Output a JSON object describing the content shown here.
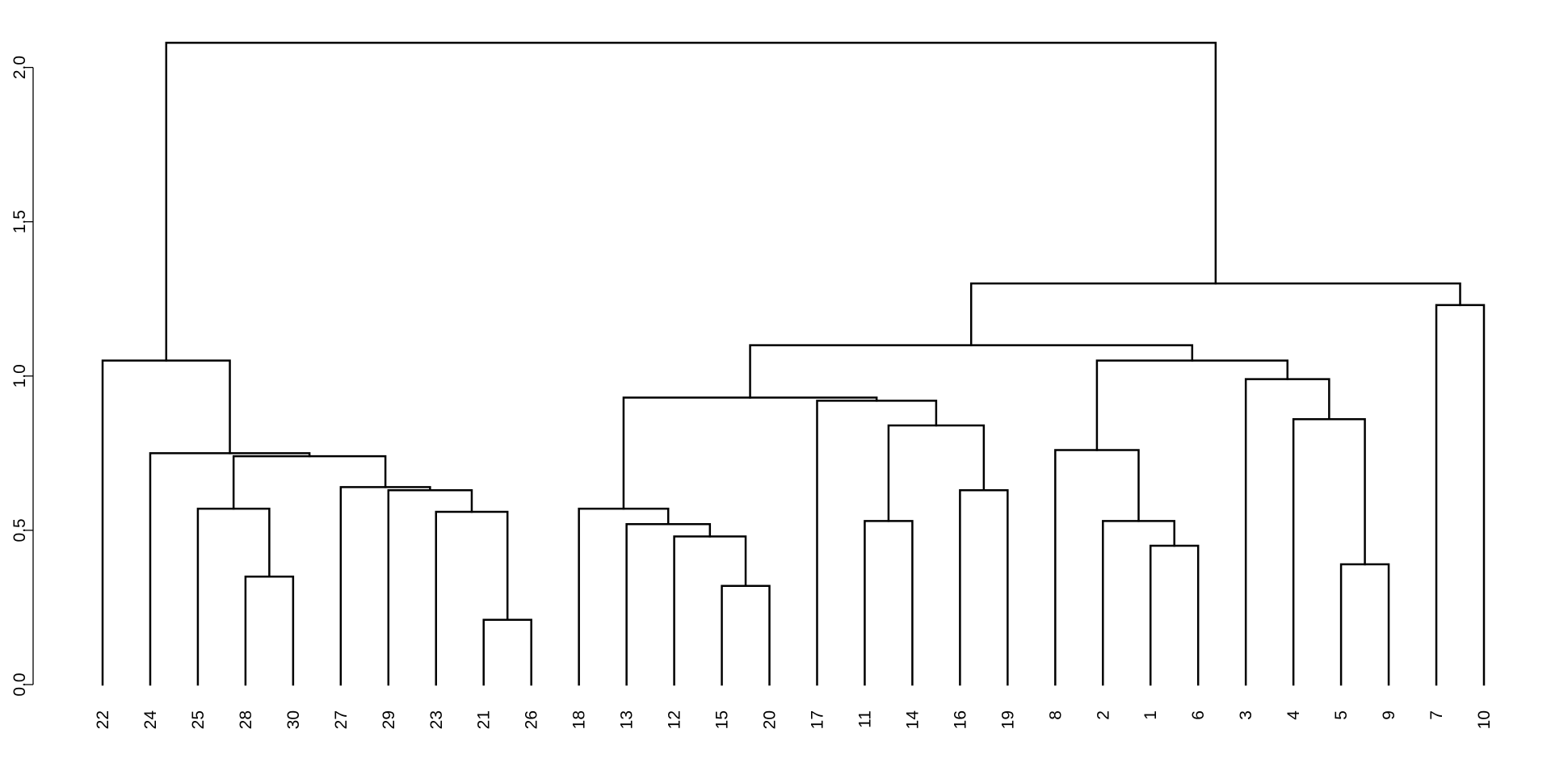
{
  "chart_data": {
    "type": "dendrogram",
    "title": "",
    "xlabel": "",
    "ylabel": "",
    "ylim": [
      0,
      2.1
    ],
    "yticks": [
      0.0,
      0.5,
      1.0,
      1.5,
      2.0
    ],
    "ytick_labels": [
      "0.0",
      "0.5",
      "1.0",
      "1.5",
      "2.0"
    ],
    "leaf_order": [
      "22",
      "24",
      "25",
      "28",
      "30",
      "27",
      "29",
      "23",
      "21",
      "26",
      "18",
      "13",
      "12",
      "15",
      "20",
      "17",
      "11",
      "14",
      "16",
      "19",
      "8",
      "2",
      "1",
      "6",
      "3",
      "4",
      "5",
      "9",
      "7",
      "10"
    ],
    "merges": [
      {
        "id": "m1",
        "left": "21",
        "right": "26",
        "height": 0.21
      },
      {
        "id": "m2",
        "left": "15",
        "right": "20",
        "height": 0.32
      },
      {
        "id": "m3",
        "left": "28",
        "right": "30",
        "height": 0.35
      },
      {
        "id": "m4",
        "left": "5",
        "right": "9",
        "height": 0.39
      },
      {
        "id": "m5",
        "left": "1",
        "right": "6",
        "height": 0.45
      },
      {
        "id": "m6",
        "left": "12",
        "right": "m2",
        "height": 0.48
      },
      {
        "id": "m7",
        "left": "13",
        "right": "m6",
        "height": 0.52
      },
      {
        "id": "m8",
        "left": "2",
        "right": "m5",
        "height": 0.53
      },
      {
        "id": "m9",
        "left": "11",
        "right": "14",
        "height": 0.53
      },
      {
        "id": "m10",
        "left": "23",
        "right": "m1",
        "height": 0.56
      },
      {
        "id": "m11",
        "left": "25",
        "right": "m3",
        "height": 0.57
      },
      {
        "id": "m12",
        "left": "18",
        "right": "m7",
        "height": 0.57
      },
      {
        "id": "m13",
        "left": "29",
        "right": "m10",
        "height": 0.63
      },
      {
        "id": "m14",
        "left": "16",
        "right": "19",
        "height": 0.63
      },
      {
        "id": "m15",
        "left": "27",
        "right": "m13",
        "height": 0.64
      },
      {
        "id": "m16",
        "left": "m11",
        "right": "m15",
        "height": 0.74
      },
      {
        "id": "m17",
        "left": "24",
        "right": "m16",
        "height": 0.75
      },
      {
        "id": "m18",
        "left": "8",
        "right": "m8",
        "height": 0.76
      },
      {
        "id": "m19",
        "left": "m9",
        "right": "m14",
        "height": 0.84
      },
      {
        "id": "m20",
        "left": "4",
        "right": "m4",
        "height": 0.86
      },
      {
        "id": "m21",
        "left": "17",
        "right": "m19",
        "height": 0.92
      },
      {
        "id": "m22",
        "left": "m12",
        "right": "m21",
        "height": 0.93
      },
      {
        "id": "m23",
        "left": "3",
        "right": "m20",
        "height": 0.99
      },
      {
        "id": "m24",
        "left": "m18",
        "right": "m23",
        "height": 1.05
      },
      {
        "id": "m25",
        "left": "22",
        "right": "m17",
        "height": 1.05
      },
      {
        "id": "m26",
        "left": "m22",
        "right": "m24",
        "height": 1.1
      },
      {
        "id": "m27",
        "left": "7",
        "right": "10",
        "height": 1.23
      },
      {
        "id": "m28",
        "left": "m26",
        "right": "m27",
        "height": 1.3
      },
      {
        "id": "m29",
        "left": "m25",
        "right": "m28",
        "height": 2.08
      }
    ]
  }
}
